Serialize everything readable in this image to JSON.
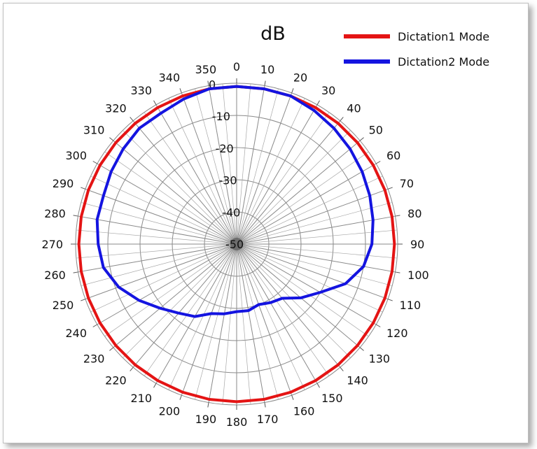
{
  "chart_data": {
    "type": "polar-line",
    "title": "dB",
    "radial_axis": {
      "range": [
        -50,
        0
      ],
      "ticks": [
        0,
        -10,
        -20,
        -30,
        -40,
        -50
      ],
      "tick_labels": [
        "0",
        "-10",
        "-20",
        "-30",
        "-40",
        "-50"
      ]
    },
    "angular_axis": {
      "direction": "clockwise",
      "zero_at": "top",
      "step_deg": 10,
      "tick_labels": [
        "0",
        "10",
        "20",
        "30",
        "40",
        "50",
        "60",
        "70",
        "80",
        "90",
        "100",
        "110",
        "120",
        "130",
        "140",
        "150",
        "160",
        "170",
        "180",
        "190",
        "200",
        "210",
        "220",
        "230",
        "240",
        "250",
        "260",
        "270",
        "280",
        "290",
        "300",
        "310",
        "320",
        "330",
        "340",
        "350"
      ]
    },
    "legend": {
      "position": "top-right"
    },
    "grid": true,
    "series": [
      {
        "name": "Dictation1 Mode",
        "color": "#e41414",
        "angles": [
          0,
          10,
          20,
          30,
          40,
          50,
          60,
          70,
          80,
          90,
          100,
          110,
          120,
          130,
          140,
          150,
          160,
          170,
          180,
          190,
          200,
          210,
          220,
          230,
          240,
          250,
          260,
          270,
          280,
          290,
          300,
          310,
          320,
          330,
          340,
          350
        ],
        "values": [
          -1,
          -1,
          -1,
          -1,
          -1,
          -1,
          -1,
          -1,
          -1,
          -1,
          -1,
          -1,
          -1,
          -1,
          -1,
          -1,
          -1,
          -1,
          -1,
          -1,
          -1,
          -1,
          -1,
          -1,
          -1,
          -1,
          -1,
          -1,
          -1,
          -1,
          -1,
          -1,
          -1,
          -1,
          -1,
          -1
        ]
      },
      {
        "name": "Dictation2 Mode",
        "color": "#1414e0",
        "angles": [
          0,
          10,
          20,
          30,
          40,
          50,
          60,
          70,
          80,
          90,
          100,
          110,
          120,
          130,
          140,
          150,
          160,
          170,
          180,
          190,
          200,
          210,
          220,
          230,
          240,
          250,
          260,
          270,
          280,
          290,
          300,
          310,
          320,
          330,
          340,
          350
        ],
        "values": [
          -1,
          -1,
          -1,
          -2,
          -3,
          -4,
          -5,
          -6,
          -7,
          -8,
          -10,
          -14,
          -20,
          -24,
          -28,
          -29,
          -30,
          -29,
          -29,
          -28,
          -27,
          -24,
          -22,
          -19,
          -15,
          -11,
          -8,
          -7,
          -6,
          -6,
          -5,
          -4,
          -3,
          -3,
          -2,
          -1
        ]
      }
    ]
  }
}
